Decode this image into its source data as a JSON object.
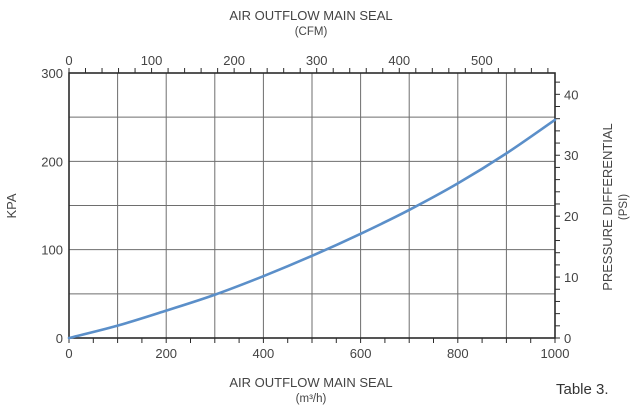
{
  "chart_data": {
    "type": "line",
    "top_title": "AIR OUTFLOW MAIN SEAL",
    "top_unit": "(CFM)",
    "bottom_title": "AIR OUTFLOW MAIN SEAL",
    "bottom_unit": "(m³/h)",
    "left_label": "KPA",
    "right_label": "PRESSURE DIFFERENTIAL",
    "right_unit": "(PSI)",
    "x": {
      "range": [
        0,
        1000
      ],
      "ticks": [
        "0",
        "200",
        "400",
        "600",
        "800",
        "1000"
      ],
      "grid_step": 100,
      "minor_step": 50
    },
    "x_top": {
      "range": [
        0,
        588.6
      ],
      "ticks": [
        "0",
        "100",
        "200",
        "300",
        "400",
        "500"
      ],
      "minor_step": 20
    },
    "y_left": {
      "range": [
        0,
        300
      ],
      "ticks": [
        "0",
        "100",
        "200",
        "300"
      ],
      "grid_step": 50
    },
    "y_right": {
      "range": [
        0,
        43.5
      ],
      "ticks": [
        "0",
        "10",
        "20",
        "30",
        "40"
      ],
      "minor_step": 2
    },
    "grid": true,
    "series": [
      {
        "color": "#5b8fc9",
        "x": [
          0,
          100,
          200,
          300,
          400,
          500,
          600,
          700,
          800,
          900,
          1000
        ],
        "y": [
          0,
          14,
          31,
          49,
          70,
          93,
          118,
          145,
          175,
          209,
          247
        ]
      }
    ]
  },
  "caption": "Table 3."
}
